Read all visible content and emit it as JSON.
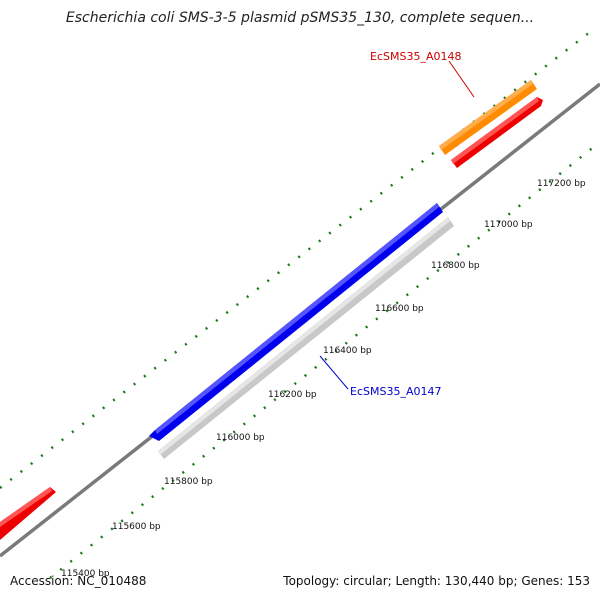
{
  "title": "Escherichia coli SMS-3-5 plasmid pSMS35_130, complete sequen...",
  "footer": {
    "accession": "Accession: NC_010488",
    "summary": "Topology: circular; Length: 130,440 bp; Genes: 153"
  },
  "colors": {
    "backbone": "#808080",
    "tick": "#1a7a1a",
    "gene_blue": "#0000ee",
    "gene_gray": "#c8c8c8",
    "gene_orange": "#ff8c00",
    "gene_red": "#ee0000",
    "label_red": "#cc0000",
    "label_blue": "#0000cc"
  },
  "position_labels": [
    "115400 bp",
    "115600 bp",
    "115800 bp",
    "116000 bp",
    "116200 bp",
    "116400 bp",
    "116600 bp",
    "116800 bp",
    "117000 bp",
    "117200 bp"
  ],
  "gene_labels": {
    "a0148": "EcSMS35_A0148",
    "a0147": "EcSMS35_A0147"
  }
}
